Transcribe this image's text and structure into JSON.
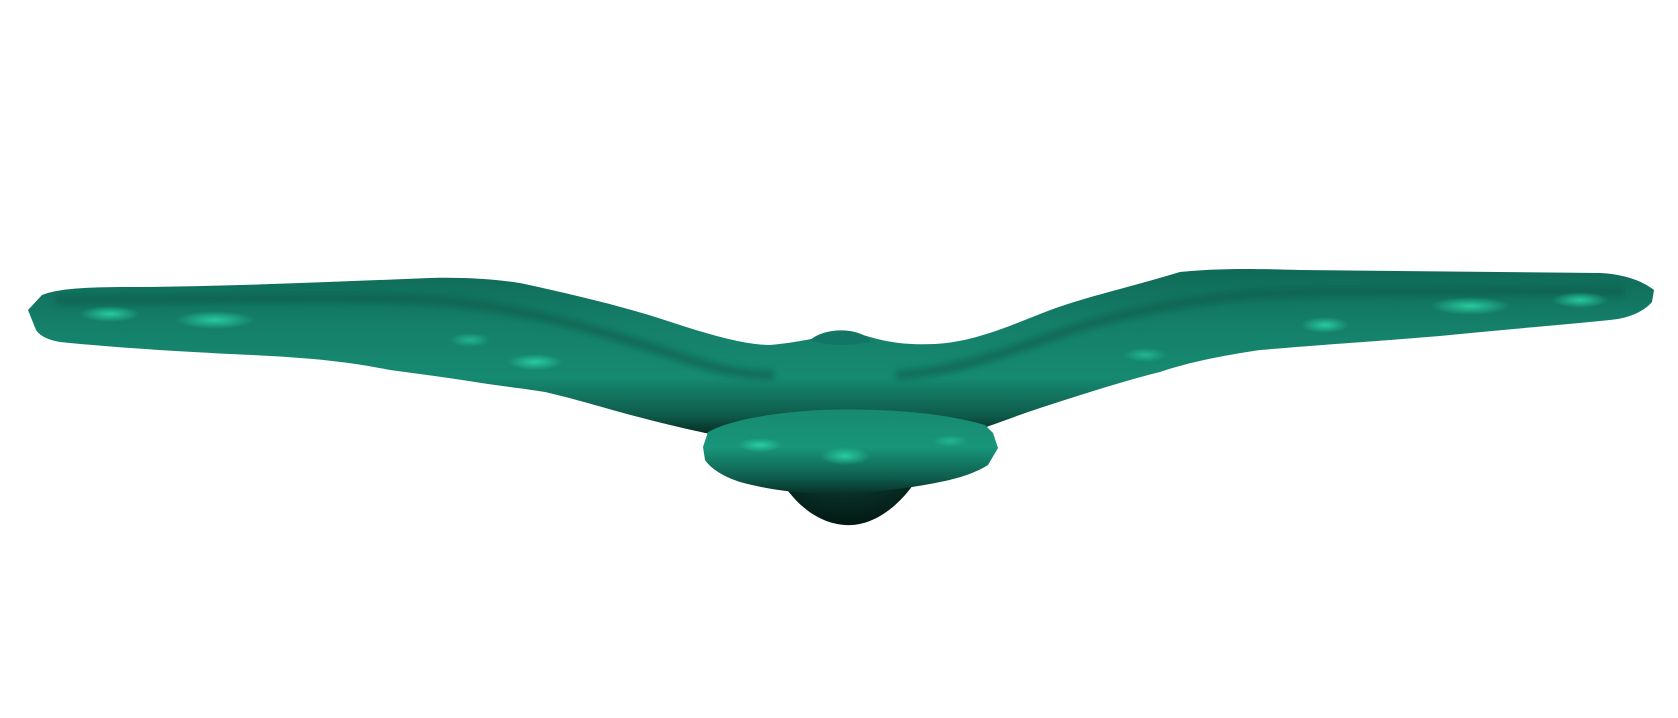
{
  "scene": {
    "subject": "bird",
    "background_color": "#ffffff",
    "palette": {
      "base": "#14725f",
      "mid": "#178a70",
      "highlight": "#2ad3a6",
      "shadow": "#0a3e33",
      "deep_shadow": "#041c16"
    }
  }
}
